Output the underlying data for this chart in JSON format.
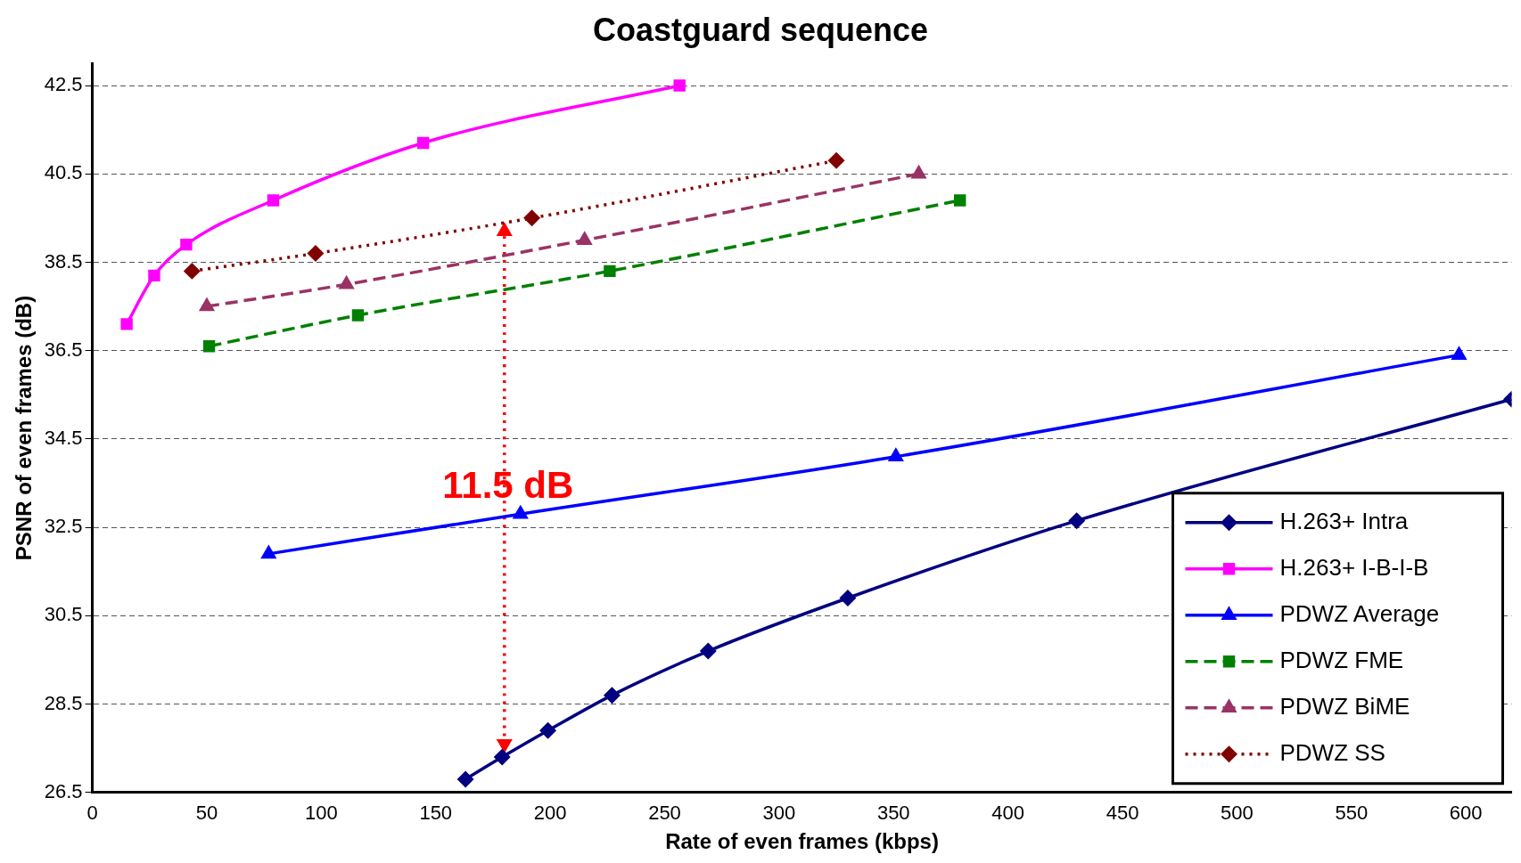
{
  "chart_data": {
    "type": "line",
    "title": "Coastguard sequence",
    "xlabel": "Rate of even frames (kbps)",
    "ylabel": "PSNR of even frames (dB)",
    "xlim": [
      0,
      620
    ],
    "xticks": [
      0,
      50,
      100,
      150,
      200,
      250,
      300,
      350,
      400,
      450,
      500,
      550,
      600
    ],
    "ylim": [
      26.5,
      43
    ],
    "yticks": [
      26.5,
      28.5,
      30.5,
      32.5,
      34.5,
      36.5,
      38.5,
      40.5,
      42.5
    ],
    "grid": "y",
    "legend": "bottom right",
    "annotations": [
      "11.5 dB"
    ],
    "series": [
      {
        "name": "H.263+ Intra",
        "color": "#000080",
        "marker": "diamond",
        "line_style": "solid",
        "x": [
          163,
          179,
          199,
          227,
          269,
          330,
          430,
          620
        ],
        "values": [
          26.8,
          27.3,
          27.9,
          28.7,
          29.7,
          30.9,
          32.65,
          35.4
        ]
      },
      {
        "name": "H.263+ I-B-I-B",
        "color": "#ff00ff",
        "marker": "square",
        "line_style": "solid",
        "x": [
          15,
          27,
          41,
          79,
          144.5,
          256.5
        ],
        "values": [
          37.1,
          38.2,
          38.9,
          39.9,
          41.2,
          42.5
        ]
      },
      {
        "name": "PDWZ Average",
        "color": "#0000ff",
        "marker": "triangle",
        "line_style": "solid",
        "x": [
          77,
          187,
          351,
          597
        ],
        "values": [
          31.9,
          32.8,
          34.1,
          36.4
        ]
      },
      {
        "name": "PDWZ FME",
        "color": "#008000",
        "marker": "square",
        "line_style": "dashed",
        "x": [
          51,
          116,
          226,
          379
        ],
        "values": [
          36.6,
          37.3,
          38.3,
          39.9
        ]
      },
      {
        "name": "PDWZ BiME",
        "color": "#993366",
        "marker": "triangle",
        "line_style": "dashed",
        "x": [
          50,
          111,
          215,
          361
        ],
        "values": [
          37.5,
          38.0,
          39.0,
          40.5
        ]
      },
      {
        "name": "PDWZ SS",
        "color": "#800000",
        "marker": "diamond",
        "line_style": "dotted",
        "x": [
          43.5,
          97.5,
          192,
          325
        ],
        "values": [
          38.3,
          38.7,
          39.5,
          40.8
        ]
      },
      {
        "color": "#ff0000",
        "marker": "triangle",
        "line_style": "dotted",
        "x": [
          180,
          180
        ],
        "values": [
          27.6,
          39.2
        ]
      }
    ]
  }
}
